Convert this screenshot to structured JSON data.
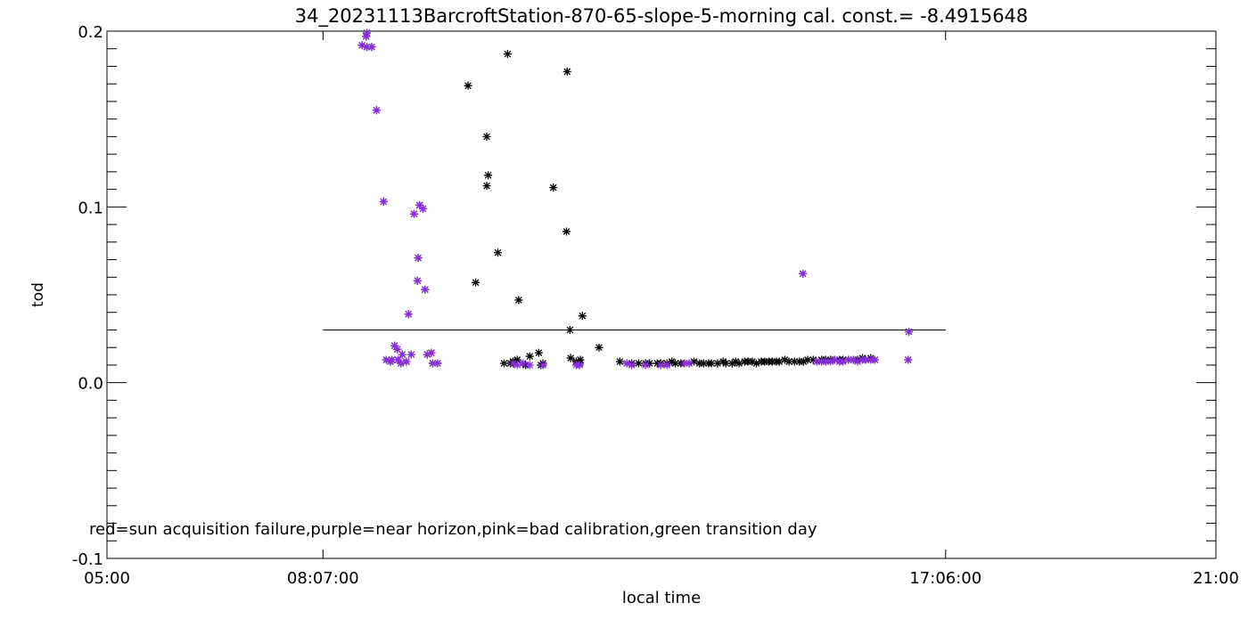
{
  "chart_data": {
    "type": "scatter",
    "title": "34_20231113BarcroftStation-870-65-slope-5-morning cal. const.= -8.4915648",
    "xlabel": "local time",
    "ylabel": "tod",
    "x_unit": "hours",
    "xlim": [
      5,
      21
    ],
    "ylim": [
      -0.1,
      0.2
    ],
    "x_tick_values": [
      5,
      8.1167,
      17.1,
      21
    ],
    "x_tick_labels": [
      "05:00",
      "08:07:00",
      "17:06:00",
      "21:00"
    ],
    "y_tick_values": [
      -0.1,
      0,
      0.1,
      0.2
    ],
    "y_tick_labels": [
      "-0.1",
      "0.0",
      "0.1",
      "0.2"
    ],
    "note": "red=sun acquisition failure,purple=near horizon,pink=bad calibration,green transition day",
    "reference_line": {
      "x_start": 8.1167,
      "x_end": 17.1,
      "y": 0.03
    },
    "colors": {
      "all": "#000000",
      "near_horizon": "#8a2be2",
      "axis": "#000000"
    },
    "series": [
      {
        "color": "#000000",
        "marker": "asterisk",
        "x": [
          8.68,
          8.75,
          8.74,
          8.75,
          8.82,
          8.89,
          8.99,
          9.03,
          9.09,
          9.11,
          9.15,
          9.24,
          9.19,
          9.2,
          9.26,
          9.32,
          9.35,
          9.39,
          9.43,
          9.48,
          9.49,
          9.51,
          9.56,
          9.59,
          9.62,
          9.68,
          9.7,
          9.77,
          10.32,
          10.21,
          10.5,
          10.48,
          10.48,
          10.78,
          10.94,
          10.64,
          11.64,
          11.44,
          11.63,
          11.68,
          12.1,
          11.86,
          10.73,
          10.89,
          10.82,
          10.87,
          10.86,
          10.92,
          11,
          11.04,
          11.1,
          11.23,
          11.26,
          11.29,
          11.69,
          11.77,
          11.82,
          11.83,
          12.4,
          12.5,
          12.57,
          12.67,
          12.77,
          12.83,
          12.94,
          12.99,
          13.08,
          13.15,
          13.2,
          13.28,
          13.33,
          13.4,
          13.47,
          13.55,
          13.61,
          13.68,
          13.72,
          13.81,
          13.89,
          13.93,
          14.02,
          14.07,
          14.12,
          14.2,
          14.25,
          14.31,
          14.37,
          14.44,
          14.49,
          14.55,
          14.6,
          14.66,
          14.7,
          14.78,
          14.84,
          14.92,
          14.99,
          15.05,
          15.11,
          15.19,
          15.24,
          15.31,
          15.37,
          15.44,
          15.5,
          15.57,
          15.62,
          15.7,
          15.77,
          15.83,
          15.9,
          15.95,
          16.02,
          16.08,
          15.04,
          16.56,
          16.57
        ],
        "y": [
          0.192,
          0.199,
          0.197,
          0.191,
          0.191,
          0.155,
          0.103,
          0.013,
          0.012,
          0.013,
          0.021,
          0.011,
          0.019,
          0.013,
          0.016,
          0.012,
          0.039,
          0.016,
          0.096,
          0.058,
          0.071,
          0.101,
          0.099,
          0.053,
          0.016,
          0.017,
          0.011,
          0.011,
          0.057,
          0.169,
          0.118,
          0.14,
          0.112,
          0.187,
          0.047,
          0.074,
          0.177,
          0.111,
          0.086,
          0.03,
          0.02,
          0.038,
          0.011,
          0.012,
          0.011,
          0.011,
          0.012,
          0.013,
          0.011,
          0.01,
          0.015,
          0.017,
          0.01,
          0.011,
          0.014,
          0.012,
          0.011,
          0.013,
          0.012,
          0.011,
          0.011,
          0.011,
          0.011,
          0.011,
          0.011,
          0.011,
          0.011,
          0.012,
          0.011,
          0.011,
          0.011,
          0.011,
          0.012,
          0.011,
          0.011,
          0.011,
          0.011,
          0.011,
          0.012,
          0.011,
          0.011,
          0.012,
          0.011,
          0.012,
          0.012,
          0.012,
          0.011,
          0.012,
          0.012,
          0.012,
          0.012,
          0.012,
          0.012,
          0.013,
          0.012,
          0.012,
          0.012,
          0.012,
          0.013,
          0.013,
          0.012,
          0.013,
          0.013,
          0.013,
          0.013,
          0.013,
          0.013,
          0.013,
          0.013,
          0.013,
          0.014,
          0.013,
          0.014,
          0.013,
          0.062,
          0.013,
          0.029
        ]
      },
      {
        "color": "#8a2be2",
        "marker": "asterisk",
        "x": [
          8.68,
          8.75,
          8.74,
          8.75,
          8.82,
          8.89,
          8.99,
          9.03,
          9.09,
          9.11,
          9.15,
          9.24,
          9.19,
          9.2,
          9.26,
          9.32,
          9.35,
          9.39,
          9.43,
          9.48,
          9.49,
          9.51,
          9.56,
          9.59,
          9.62,
          9.68,
          9.7,
          9.77,
          10.86,
          10.92,
          11,
          11.1,
          11.29,
          11.77,
          11.82,
          12.5,
          12.57,
          12.77,
          12.99,
          13.08,
          13.33,
          13.4,
          15.04,
          15.24,
          15.31,
          15.37,
          15.44,
          15.5,
          15.57,
          15.62,
          15.7,
          15.77,
          15.83,
          15.9,
          15.95,
          16.02,
          16.08,
          16.57,
          16.56
        ],
        "y": [
          0.192,
          0.199,
          0.197,
          0.191,
          0.191,
          0.155,
          0.103,
          0.013,
          0.012,
          0.013,
          0.021,
          0.011,
          0.019,
          0.013,
          0.016,
          0.012,
          0.039,
          0.016,
          0.096,
          0.058,
          0.071,
          0.101,
          0.099,
          0.053,
          0.016,
          0.017,
          0.011,
          0.011,
          0.011,
          0.01,
          0.011,
          0.01,
          0.01,
          0.01,
          0.01,
          0.011,
          0.01,
          0.01,
          0.01,
          0.01,
          0.011,
          0.011,
          0.062,
          0.012,
          0.012,
          0.012,
          0.012,
          0.013,
          0.012,
          0.012,
          0.013,
          0.013,
          0.012,
          0.013,
          0.013,
          0.013,
          0.013,
          0.029,
          0.013
        ]
      }
    ]
  }
}
